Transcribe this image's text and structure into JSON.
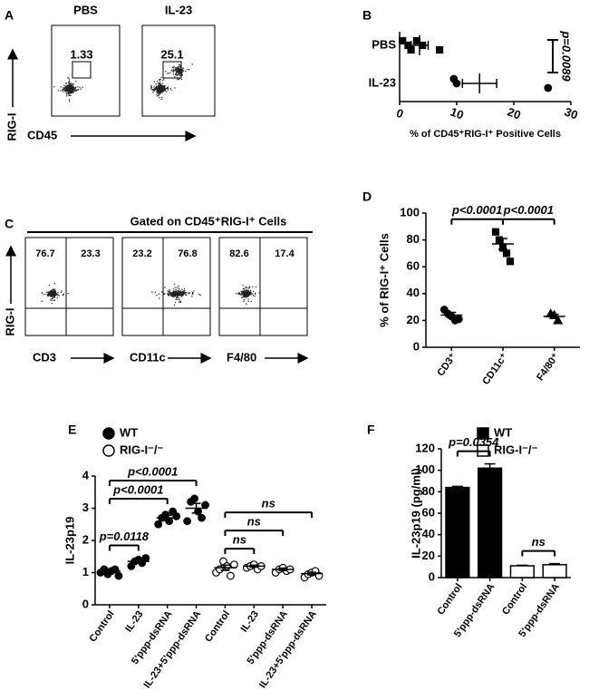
{
  "flow_a": {
    "label": "A",
    "y_label": "RIG-I",
    "x_label": "CD45",
    "plots": [
      {
        "title": "PBS",
        "gate": 1.33
      },
      {
        "title": "IL-23",
        "gate": 25.1
      }
    ]
  },
  "flow_c": {
    "label": "C",
    "title": "Gated on CD45⁺RIG-I⁺ Cells",
    "y_label": "RIG-I",
    "plots": [
      {
        "x_label": "CD3",
        "left": 76.7,
        "right": 23.3
      },
      {
        "x_label": "CD11c",
        "left": 23.2,
        "right": 76.8
      },
      {
        "x_label": "F4/80",
        "left": 82.6,
        "right": 17.4
      }
    ]
  },
  "chart_data": [
    {
      "type": "dotplot_h",
      "label": "B",
      "categories": [
        "PBS",
        "IL-23"
      ],
      "markers": [
        "square",
        "circle"
      ],
      "points": [
        [
          0.5,
          1.5,
          2,
          3,
          4,
          7
        ],
        [
          9.5,
          10,
          26
        ]
      ],
      "means": [
        3.5,
        14
      ],
      "sems": [
        1.5,
        3
      ],
      "xlim": [
        0,
        30
      ],
      "xticks": [
        0,
        10,
        20,
        30
      ],
      "x_label": "% of CD45⁺RIG-I⁺ Positive Cells",
      "annotation": "p=0.0089"
    },
    {
      "type": "dotplot",
      "label": "D",
      "categories": [
        "CD3⁺",
        "CD11c⁺",
        "F4/80⁺"
      ],
      "markers": [
        "circle",
        "square",
        "triangle"
      ],
      "points": [
        [
          28,
          25,
          23,
          20,
          21
        ],
        [
          86,
          80,
          74,
          70,
          64
        ],
        [
          25,
          24,
          20
        ]
      ],
      "means": [
        24,
        77,
        23
      ],
      "sems": [
        2,
        4,
        1.5
      ],
      "ylim": [
        0,
        100
      ],
      "yticks": [
        0,
        20,
        40,
        60,
        80,
        100
      ],
      "y_label": "% of RIG-I⁺ Cells",
      "comparisons": [
        {
          "pair": [
            0,
            1
          ],
          "label": "p<0.0001"
        },
        {
          "pair": [
            1,
            2
          ],
          "label": "p<0.0001"
        }
      ]
    },
    {
      "type": "dotplot",
      "label": "E",
      "categories": [
        "Control",
        "IL-23",
        "5'ppp-dsRNA",
        "IL-23+5'ppp-dsRNA",
        "Control",
        "IL-23",
        "5'ppp-dsRNA",
        "IL-23+5'ppp-dsRNA"
      ],
      "series": [
        {
          "name": "WT",
          "marker": "circle",
          "color": "#000000",
          "points": [
            [
              1.0,
              1.1,
              0.95,
              1.05,
              1.1,
              0.9
            ],
            [
              1.2,
              1.35,
              1.4,
              1.3,
              1.45
            ],
            [
              2.5,
              2.7,
              2.8,
              2.6,
              2.9,
              2.75
            ],
            [
              2.6,
              3.2,
              3.3,
              2.9,
              2.7,
              3.1
            ],
            null,
            null,
            null,
            null
          ],
          "means": [
            1.05,
            1.35,
            2.7,
            3.0,
            null,
            null,
            null,
            null
          ],
          "sems": [
            0.05,
            0.05,
            0.08,
            0.15,
            null,
            null,
            null,
            null
          ]
        },
        {
          "name": "RIG-I⁻/⁻",
          "marker": "circle",
          "color": "#ffffff",
          "points": [
            null,
            null,
            null,
            null,
            [
              1.0,
              1.1,
              1.35,
              1.2,
              0.9,
              1.25
            ],
            [
              1.15,
              1.2,
              1.25,
              1.1,
              1.2
            ],
            [
              1.0,
              1.1,
              1.15,
              1.05,
              1.1
            ],
            [
              0.85,
              0.95,
              1.0,
              1.05,
              0.9
            ]
          ],
          "means": [
            null,
            null,
            null,
            null,
            1.15,
            1.2,
            1.1,
            0.97
          ],
          "sems": [
            null,
            null,
            null,
            null,
            0.08,
            0.03,
            0.04,
            0.04
          ]
        }
      ],
      "ylim": [
        0,
        4
      ],
      "yticks": [
        0,
        1,
        2,
        3,
        4
      ],
      "y_label": "IL-23p19",
      "comparisons": [
        {
          "pair": [
            0,
            1
          ],
          "label": "p=0.0118"
        },
        {
          "pair": [
            0,
            2
          ],
          "label": "p<0.0001"
        },
        {
          "pair": [
            0,
            3
          ],
          "label": "p<0.0001"
        },
        {
          "pair": [
            4,
            5
          ],
          "label": "ns"
        },
        {
          "pair": [
            4,
            6
          ],
          "label": "ns"
        },
        {
          "pair": [
            4,
            7
          ],
          "label": "ns"
        }
      ]
    },
    {
      "type": "bar",
      "label": "F",
      "categories": [
        "Control",
        "5'ppp-dsRNA",
        "Control",
        "5'ppp-dsRNA"
      ],
      "series": [
        {
          "name": "WT",
          "color": "#000000",
          "values": [
            84,
            102,
            null,
            null
          ],
          "sems": [
            1,
            4,
            null,
            null
          ]
        },
        {
          "name": "RIG-I⁻/⁻",
          "color": "#ffffff",
          "values": [
            null,
            null,
            11,
            12
          ],
          "sems": [
            null,
            null,
            0.5,
            1
          ]
        }
      ],
      "ylim": [
        0,
        120
      ],
      "yticks": [
        0,
        20,
        40,
        60,
        80,
        100,
        120
      ],
      "y_label": "IL-23p19 (pg/ml)",
      "comparisons": [
        {
          "pair": [
            0,
            1
          ],
          "label": "p=0.0354"
        },
        {
          "pair": [
            2,
            3
          ],
          "label": "ns"
        }
      ]
    }
  ]
}
